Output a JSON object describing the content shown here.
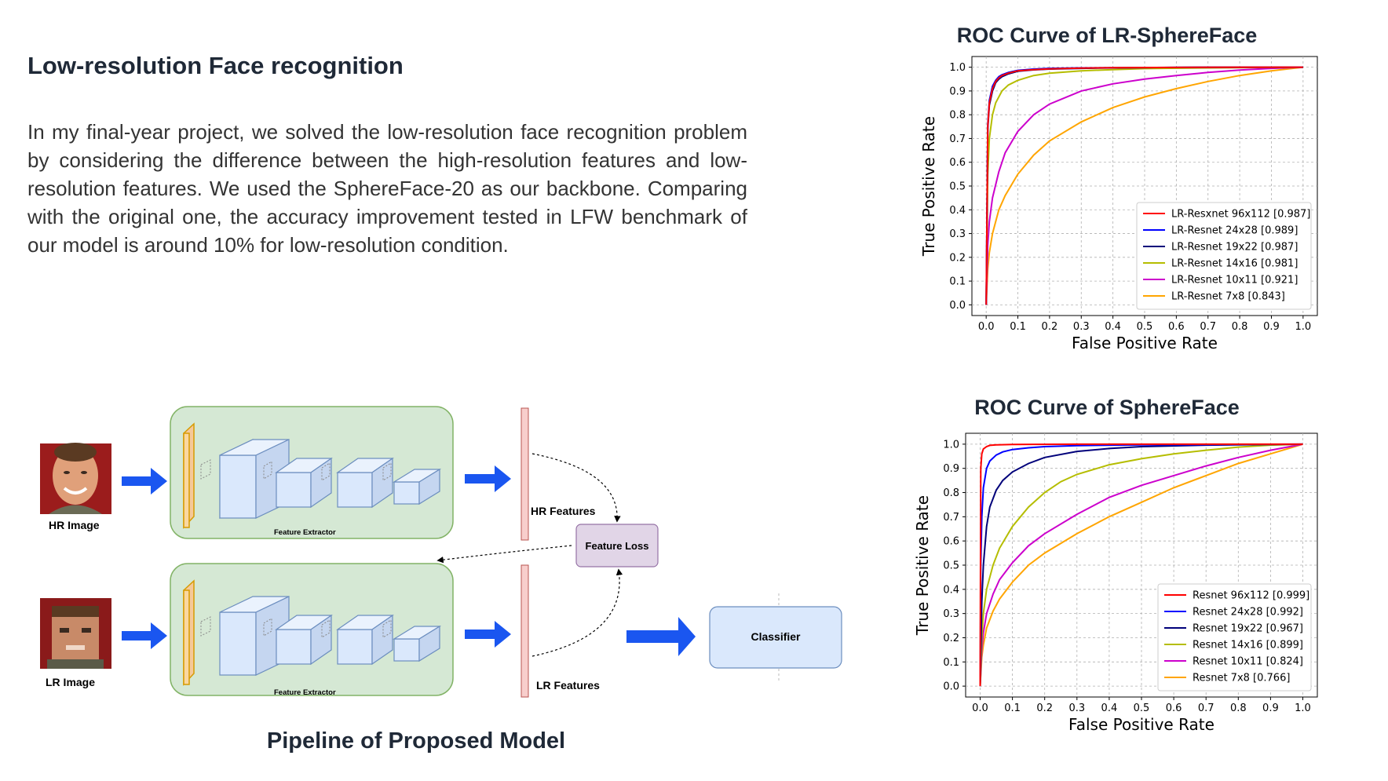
{
  "header": {
    "title": "Low-resolution Face recognition",
    "description": "In my final-year project, we solved the low-resolution face recognition problem by considering the difference between the high-resolution features and low-resolution features. We used the SphereFace-20 as our backbone. Comparing with the original one, the accuracy improvement tested in LFW benchmark of our model is around 10% for low-resolution condition."
  },
  "pipeline": {
    "caption": "Pipeline of Proposed Model",
    "hr_image_label": "HR Image",
    "lr_image_label": "LR Image",
    "extractor_label": "Feature Extractor",
    "hr_features_label": "HR Features",
    "lr_features_label": "LR Features",
    "loss_label": "Feature Loss",
    "classifier_label": "Classifier",
    "colors": {
      "extractor_bg": "#d5e8d4",
      "extractor_border": "#82b366",
      "arrow": "#1a56f0",
      "feature_bar": "#f8cecc",
      "loss_bg": "#e1d5e7",
      "classifier_bg": "#dae8fc"
    }
  },
  "chart_data": [
    {
      "type": "line",
      "title": "ROC Curve of LR-SphereFace",
      "xlabel": "False Positive Rate",
      "ylabel": "True Positive Rate",
      "xlim": [
        0,
        1
      ],
      "ylim": [
        0,
        1
      ],
      "xticks": [
        "0.0",
        "0.1",
        "0.2",
        "0.3",
        "0.4",
        "0.5",
        "0.6",
        "0.7",
        "0.8",
        "0.9",
        "1.0"
      ],
      "yticks": [
        "0.0",
        "0.1",
        "0.2",
        "0.3",
        "0.4",
        "0.5",
        "0.6",
        "0.7",
        "0.8",
        "0.9",
        "1.0"
      ],
      "grid": true,
      "legend_position": "lower-right",
      "series": [
        {
          "name": "LR-Resxnet 96x112 [0.987]",
          "color": "#ff0000",
          "x": [
            0,
            0.005,
            0.01,
            0.02,
            0.03,
            0.04,
            0.05,
            0.07,
            0.1,
            0.15,
            0.2,
            0.3,
            0.4,
            0.6,
            0.8,
            1.0
          ],
          "y": [
            0,
            0.75,
            0.85,
            0.91,
            0.94,
            0.955,
            0.965,
            0.975,
            0.985,
            0.99,
            0.993,
            0.996,
            0.998,
            0.999,
            1.0,
            1.0
          ]
        },
        {
          "name": "LR-Resnet 24x28 [0.989]",
          "color": "#0000ff",
          "x": [
            0,
            0.005,
            0.01,
            0.02,
            0.03,
            0.04,
            0.05,
            0.07,
            0.1,
            0.15,
            0.2,
            0.3,
            0.4,
            0.6,
            0.8,
            1.0
          ],
          "y": [
            0,
            0.76,
            0.86,
            0.92,
            0.945,
            0.96,
            0.968,
            0.978,
            0.987,
            0.992,
            0.995,
            0.997,
            0.998,
            0.999,
            1.0,
            1.0
          ]
        },
        {
          "name": "LR-Resnet 19x22 [0.987]",
          "color": "#00007a",
          "x": [
            0,
            0.005,
            0.01,
            0.02,
            0.03,
            0.04,
            0.05,
            0.07,
            0.1,
            0.15,
            0.2,
            0.3,
            0.4,
            0.6,
            0.8,
            1.0
          ],
          "y": [
            0,
            0.74,
            0.84,
            0.9,
            0.935,
            0.95,
            0.96,
            0.972,
            0.983,
            0.989,
            0.992,
            0.995,
            0.997,
            0.999,
            1.0,
            1.0
          ]
        },
        {
          "name": "LR-Resnet 14x16 [0.981]",
          "color": "#b5bd00",
          "x": [
            0,
            0.005,
            0.01,
            0.02,
            0.03,
            0.05,
            0.07,
            0.1,
            0.15,
            0.2,
            0.3,
            0.4,
            0.5,
            0.7,
            0.9,
            1.0
          ],
          "y": [
            0,
            0.55,
            0.7,
            0.8,
            0.85,
            0.9,
            0.925,
            0.945,
            0.965,
            0.975,
            0.985,
            0.99,
            0.994,
            0.997,
            0.999,
            1.0
          ]
        },
        {
          "name": "LR-Resnet 10x11 [0.921]",
          "color": "#cc00cc",
          "x": [
            0,
            0.005,
            0.01,
            0.02,
            0.04,
            0.06,
            0.1,
            0.15,
            0.2,
            0.3,
            0.4,
            0.5,
            0.6,
            0.7,
            0.8,
            0.9,
            1.0
          ],
          "y": [
            0,
            0.25,
            0.35,
            0.45,
            0.56,
            0.64,
            0.73,
            0.8,
            0.845,
            0.9,
            0.93,
            0.95,
            0.965,
            0.978,
            0.988,
            0.995,
            1.0
          ]
        },
        {
          "name": "LR-Resnet 7x8 [0.843]",
          "color": "#ffa500",
          "x": [
            0,
            0.005,
            0.01,
            0.02,
            0.04,
            0.06,
            0.1,
            0.15,
            0.2,
            0.3,
            0.4,
            0.5,
            0.6,
            0.7,
            0.8,
            0.9,
            1.0
          ],
          "y": [
            0,
            0.15,
            0.22,
            0.3,
            0.4,
            0.46,
            0.55,
            0.63,
            0.69,
            0.77,
            0.83,
            0.875,
            0.91,
            0.94,
            0.965,
            0.985,
            1.0
          ]
        }
      ]
    },
    {
      "type": "line",
      "title": "ROC Curve of SphereFace",
      "xlabel": "False Positive Rate",
      "ylabel": "True Positive Rate",
      "xlim": [
        0,
        1
      ],
      "ylim": [
        0,
        1
      ],
      "xticks": [
        "0.0",
        "0.1",
        "0.2",
        "0.3",
        "0.4",
        "0.5",
        "0.6",
        "0.7",
        "0.8",
        "0.9",
        "1.0"
      ],
      "yticks": [
        "0.0",
        "0.1",
        "0.2",
        "0.3",
        "0.4",
        "0.5",
        "0.6",
        "0.7",
        "0.8",
        "0.9",
        "1.0"
      ],
      "grid": true,
      "legend_position": "lower-right",
      "series": [
        {
          "name": "Resnet 96x112 [0.999]",
          "color": "#ff0000",
          "x": [
            0,
            0.002,
            0.005,
            0.01,
            0.02,
            0.03,
            0.05,
            0.1,
            0.3,
            0.6,
            1.0
          ],
          "y": [
            0,
            0.9,
            0.96,
            0.98,
            0.99,
            0.995,
            0.997,
            0.999,
            1.0,
            1.0,
            1.0
          ]
        },
        {
          "name": "Resnet 24x28 [0.992]",
          "color": "#0000ff",
          "x": [
            0,
            0.002,
            0.005,
            0.01,
            0.02,
            0.03,
            0.05,
            0.07,
            0.1,
            0.15,
            0.2,
            0.3,
            0.5,
            0.8,
            1.0
          ],
          "y": [
            0,
            0.5,
            0.7,
            0.82,
            0.9,
            0.93,
            0.955,
            0.968,
            0.978,
            0.985,
            0.99,
            0.994,
            0.997,
            0.999,
            1.0
          ]
        },
        {
          "name": "Resnet 19x22 [0.967]",
          "color": "#00007a",
          "x": [
            0,
            0.005,
            0.01,
            0.02,
            0.03,
            0.05,
            0.07,
            0.1,
            0.15,
            0.2,
            0.3,
            0.4,
            0.5,
            0.7,
            0.9,
            1.0
          ],
          "y": [
            0,
            0.35,
            0.5,
            0.66,
            0.74,
            0.81,
            0.85,
            0.885,
            0.92,
            0.945,
            0.97,
            0.982,
            0.99,
            0.996,
            0.999,
            1.0
          ]
        },
        {
          "name": "Resnet 14x16 [0.899]",
          "color": "#b5bd00",
          "x": [
            0,
            0.005,
            0.01,
            0.02,
            0.04,
            0.06,
            0.1,
            0.15,
            0.2,
            0.25,
            0.3,
            0.4,
            0.5,
            0.6,
            0.7,
            0.8,
            0.9,
            1.0
          ],
          "y": [
            0,
            0.2,
            0.3,
            0.4,
            0.5,
            0.57,
            0.66,
            0.74,
            0.8,
            0.845,
            0.875,
            0.915,
            0.94,
            0.96,
            0.975,
            0.988,
            0.996,
            1.0
          ]
        },
        {
          "name": "Resnet 10x11 [0.824]",
          "color": "#cc00cc",
          "x": [
            0,
            0.005,
            0.01,
            0.02,
            0.04,
            0.06,
            0.1,
            0.15,
            0.2,
            0.3,
            0.4,
            0.5,
            0.6,
            0.7,
            0.8,
            0.9,
            1.0
          ],
          "y": [
            0,
            0.15,
            0.22,
            0.3,
            0.38,
            0.44,
            0.51,
            0.58,
            0.63,
            0.71,
            0.78,
            0.83,
            0.87,
            0.91,
            0.945,
            0.975,
            1.0
          ]
        },
        {
          "name": "Resnet 7x8 [0.766]",
          "color": "#ffa500",
          "x": [
            0,
            0.005,
            0.01,
            0.02,
            0.04,
            0.06,
            0.1,
            0.15,
            0.2,
            0.3,
            0.4,
            0.5,
            0.6,
            0.7,
            0.8,
            0.9,
            1.0
          ],
          "y": [
            0,
            0.12,
            0.17,
            0.24,
            0.31,
            0.36,
            0.43,
            0.5,
            0.55,
            0.63,
            0.7,
            0.76,
            0.82,
            0.87,
            0.92,
            0.96,
            1.0
          ]
        }
      ]
    }
  ]
}
